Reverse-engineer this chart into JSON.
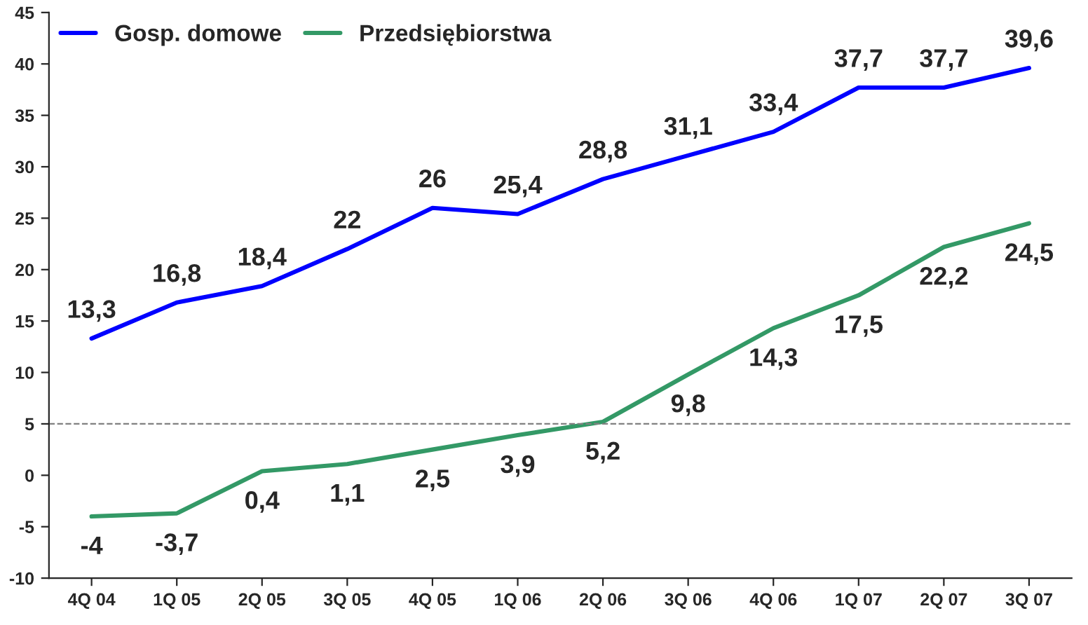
{
  "chart_data": {
    "type": "line",
    "categories": [
      "4Q 04",
      "1Q 05",
      "2Q 05",
      "3Q 05",
      "4Q 05",
      "1Q 06",
      "2Q 06",
      "3Q 06",
      "4Q 06",
      "1Q 07",
      "2Q 07",
      "3Q 07"
    ],
    "series": [
      {
        "name": "Gosp. domowe",
        "color": "#0000ff",
        "values": [
          13.3,
          16.8,
          18.4,
          22,
          26,
          25.4,
          28.8,
          31.1,
          33.4,
          37.7,
          37.7,
          39.6
        ],
        "value_labels": [
          "13,3",
          "16,8",
          "18,4",
          "22",
          "26",
          "25,4",
          "28,8",
          "31,1",
          "33,4",
          "37,7",
          "37,7",
          "39,6"
        ]
      },
      {
        "name": "Przedsiębiorstwa",
        "color": "#339966",
        "values": [
          -4,
          -3.7,
          0.4,
          1.1,
          2.5,
          3.9,
          5.2,
          9.8,
          14.3,
          17.5,
          22.2,
          24.5
        ],
        "value_labels": [
          "-4",
          "-3,7",
          "0,4",
          "1,1",
          "2,5",
          "3,9",
          "5,2",
          "9,8",
          "14,3",
          "17,5",
          "22,2",
          "24,5"
        ]
      }
    ],
    "ylim": [
      -10,
      45
    ],
    "yticks": [
      -10,
      -5,
      0,
      5,
      10,
      15,
      20,
      25,
      30,
      35,
      40,
      45
    ],
    "ref_lines": [
      {
        "axis": "y",
        "value": 5,
        "color": "#808080",
        "line_style": "dashed"
      }
    ],
    "grid": false,
    "legend": "top left",
    "marker": "none",
    "line_style": "solid"
  }
}
